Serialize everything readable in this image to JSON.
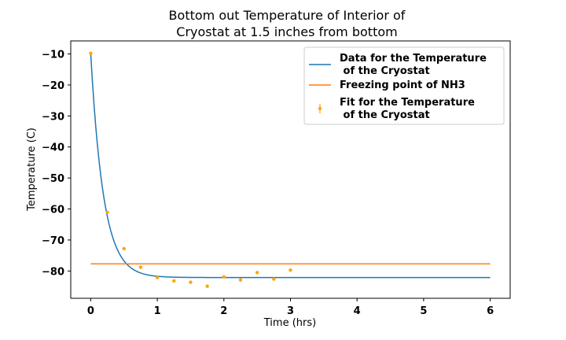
{
  "chart_data": {
    "type": "line",
    "title_line1": "Bottom out Temperature of Interior of",
    "title_line2": "Cryostat at 1.5 inches from bottom",
    "xlabel": "Time (hrs)",
    "ylabel": "Temperature (C)",
    "xlim": [
      -0.3,
      6.3
    ],
    "ylim": [
      -88.8,
      -5.8
    ],
    "xticks": [
      0,
      1,
      2,
      3,
      4,
      5,
      6
    ],
    "yticks": [
      -80,
      -70,
      -60,
      -50,
      -40,
      -30,
      -20,
      -10
    ],
    "grid": false,
    "legend_position": "top-right",
    "series": [
      {
        "name": "Data for the Temperature\n of the Cryostat",
        "kind": "line",
        "color": "#1f77b4",
        "model": {
          "form": "exponential_decay",
          "start": -10,
          "asymptote": -82.1,
          "rate_per_hr": 5.2
        },
        "x_range": [
          0,
          6
        ]
      },
      {
        "name": "Freezing point of NH3",
        "kind": "line",
        "color": "#ff7f0e",
        "x": [
          0,
          6
        ],
        "y": [
          -77.7,
          -77.7
        ]
      },
      {
        "name": "Fit for the Temperature\n of the Cryostat",
        "kind": "errorbar-points",
        "color": "#ffa500",
        "x": [
          0,
          0.25,
          0.5,
          0.75,
          1.0,
          1.25,
          1.5,
          1.75,
          2.0,
          2.25,
          2.5,
          2.75,
          3.0
        ],
        "y": [
          -9.8,
          -61.1,
          -72.8,
          -78.8,
          -82.1,
          -83.2,
          -83.6,
          -84.9,
          -81.9,
          -82.9,
          -80.5,
          -82.6,
          -79.7
        ]
      }
    ]
  }
}
